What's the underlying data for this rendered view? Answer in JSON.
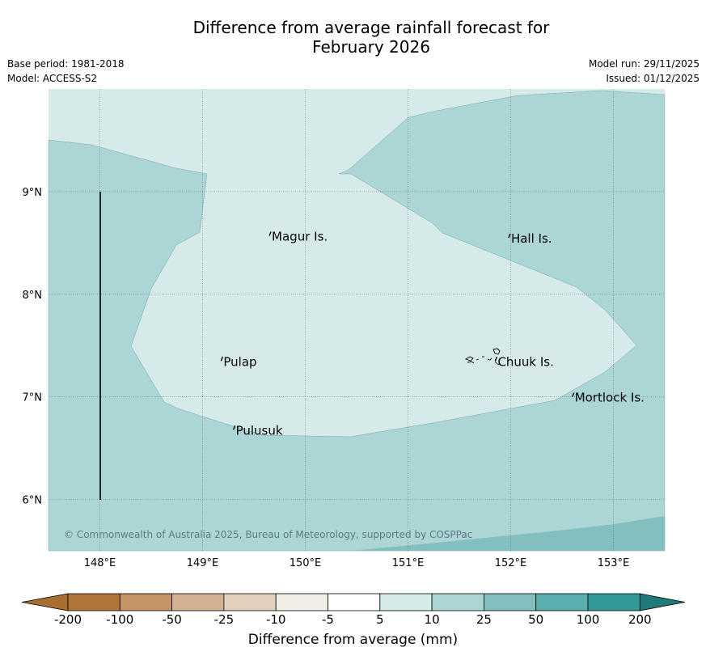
{
  "title": {
    "line1": "Difference from average rainfall forecast for",
    "line2": "February 2026"
  },
  "meta": {
    "base_period": "Base period: 1981-2018",
    "model": "Model: ACCESS-S2",
    "model_run": "Model run: 29/11/2025",
    "issued": "Issued: 01/12/2025"
  },
  "map": {
    "lon_range": [
      147.5,
      153.5
    ],
    "lat_range": [
      5.5,
      10.0
    ],
    "lon_ticks": [
      {
        "value": 148,
        "label": "148°E"
      },
      {
        "value": 149,
        "label": "149°E"
      },
      {
        "value": 150,
        "label": "150°E"
      },
      {
        "value": 151,
        "label": "151°E"
      },
      {
        "value": 152,
        "label": "152°E"
      },
      {
        "value": 153,
        "label": "153°E"
      }
    ],
    "lat_ticks": [
      {
        "value": 9,
        "label": "9°N"
      },
      {
        "value": 8,
        "label": "8°N"
      },
      {
        "value": 7,
        "label": "7°N"
      },
      {
        "value": 6,
        "label": "6°N"
      }
    ],
    "places": [
      {
        "name": "Magur Is.",
        "lon": 149.65,
        "lat": 8.57
      },
      {
        "name": "Hall Is.",
        "lon": 151.98,
        "lat": 8.55
      },
      {
        "name": "Pulap",
        "lon": 149.18,
        "lat": 7.35
      },
      {
        "name": "Chuuk Is.",
        "lon": 151.85,
        "lat": 7.35
      },
      {
        "name": "Mortlock Is.",
        "lon": 152.6,
        "lat": 7.0
      },
      {
        "name": "Pulusuk",
        "lon": 149.3,
        "lat": 6.68
      }
    ],
    "copyright": "© Commonwealth of Australia 2025, Bureau of Meteorology, supported by COSPPac"
  },
  "colorbar": {
    "label": "Difference from average (mm)",
    "ticks": [
      "-200",
      "-100",
      "-50",
      "-25",
      "-10",
      "-5",
      "5",
      "10",
      "25",
      "50",
      "100",
      "200"
    ],
    "colors": [
      "#a86f33",
      "#b07538",
      "#c29466",
      "#d3b290",
      "#e3d0bc",
      "#f1ede7",
      "#ffffff",
      "#d6eaea",
      "#acd5d5",
      "#83bfbf",
      "#5aaeae",
      "#34999a",
      "#217a7a"
    ]
  },
  "legend_colors": {
    "light": "#d6eaea",
    "medium": "#acd5d5",
    "darker": "#83bfbf"
  }
}
